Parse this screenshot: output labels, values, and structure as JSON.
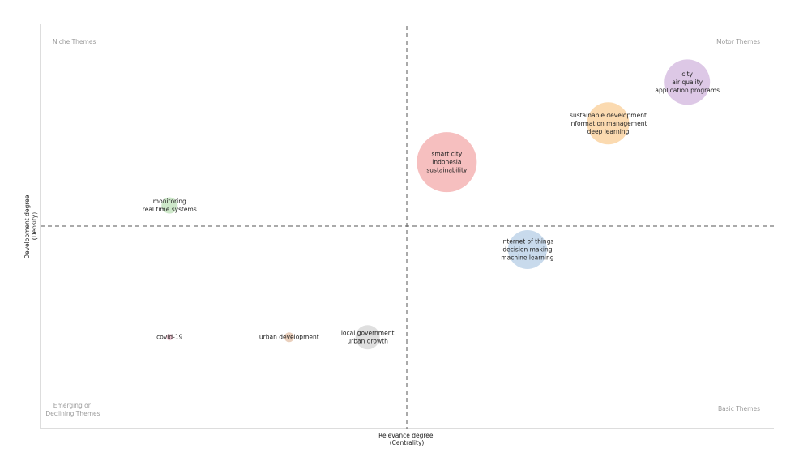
{
  "chart_data": {
    "type": "scatter",
    "title": "",
    "xlabel": [
      "Relevance degree",
      "(Centrality)"
    ],
    "ylabel": [
      "Development degree",
      "(Density)"
    ],
    "quadrants": {
      "top_left": "Niche Themes",
      "top_right": "Motor Themes",
      "bottom_left": [
        "Emerging or",
        "Declining Themes"
      ],
      "bottom_right": "Basic Themes"
    },
    "points": [
      {
        "labels": [
          "city",
          "air quality",
          "application programs"
        ],
        "x": 0.882,
        "y": 0.857,
        "size": 28,
        "color": "#d9c2e3"
      },
      {
        "labels": [
          "sustainable development",
          "information management",
          "deep learning"
        ],
        "x": 0.774,
        "y": 0.755,
        "size": 26,
        "color": "#fbd6a7"
      },
      {
        "labels": [
          "smart city",
          "indonesia",
          "sustainability"
        ],
        "x": 0.554,
        "y": 0.659,
        "size": 37,
        "color": "#f5b8b8"
      },
      {
        "labels": [
          "monitoring",
          "real time systems"
        ],
        "x": 0.176,
        "y": 0.552,
        "size": 10,
        "color": "#c9e6c4"
      },
      {
        "labels": [
          "internet of things",
          "decision making",
          "machine learning"
        ],
        "x": 0.664,
        "y": 0.443,
        "size": 24,
        "color": "#c2d6ea"
      },
      {
        "labels": [
          "covid-19"
        ],
        "x": 0.176,
        "y": 0.226,
        "size": 4,
        "color": "#f2c4d3"
      },
      {
        "labels": [
          "urban development"
        ],
        "x": 0.339,
        "y": 0.226,
        "size": 6,
        "color": "#e8cbb6"
      },
      {
        "labels": [
          "local government",
          "urban growth"
        ],
        "x": 0.446,
        "y": 0.226,
        "size": 15,
        "color": "#dcdcdc"
      }
    ],
    "grid": false,
    "legend": "none"
  }
}
